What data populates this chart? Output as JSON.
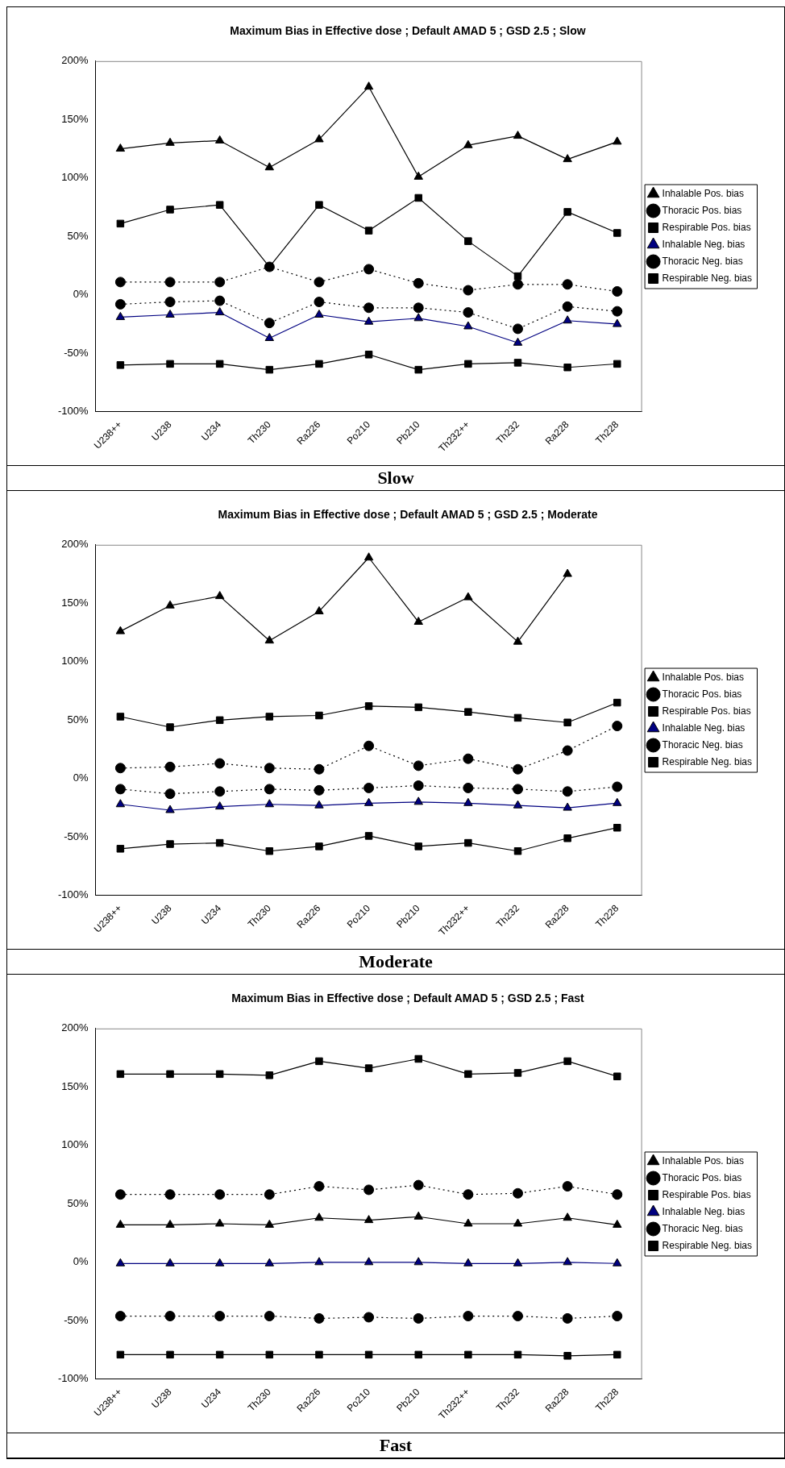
{
  "chart_data": [
    {
      "type": "line",
      "title": "Maximum Bias in Effective dose ; Default AMAD 5 ; GSD 2.5 ; Slow",
      "categories": [
        "U238++",
        "U238",
        "U234",
        "Th230",
        "Ra226",
        "Po210",
        "Pb210",
        "Th232++",
        "Th232",
        "Ra228",
        "Th228"
      ],
      "ylim": [
        -100,
        200
      ],
      "yticks": [
        {
          "value": -100,
          "label": "-100%"
        },
        {
          "value": -50,
          "label": "-50%"
        },
        {
          "value": 0,
          "label": "0%"
        },
        {
          "value": 50,
          "label": "50%"
        },
        {
          "value": 100,
          "label": "100%"
        },
        {
          "value": 150,
          "label": "150%"
        },
        {
          "value": 200,
          "label": "200%"
        }
      ],
      "legend": "right",
      "grid": false,
      "annotations": [
        "Slow"
      ],
      "series": [
        {
          "name": "Inhalable Pos. bias",
          "color": "#000000",
          "marker": "triangle",
          "line_style": "solid",
          "values": [
            125,
            130,
            132,
            109,
            133,
            178,
            101,
            128,
            136,
            116,
            131
          ]
        },
        {
          "name": "Thoracic Pos. bias",
          "color": "#000000",
          "marker": "circle",
          "line_style": "dotted",
          "values": [
            11,
            11,
            11,
            24,
            11,
            22,
            10,
            4,
            9,
            9,
            3
          ]
        },
        {
          "name": "Respirable Pos. bias",
          "color": "#000000",
          "marker": "square",
          "line_style": "solid",
          "values": [
            61,
            73,
            77,
            24,
            77,
            55,
            83,
            46,
            16,
            71,
            53
          ]
        },
        {
          "name": "Inhalable Neg. bias",
          "color": "#000080",
          "marker": "triangle",
          "line_style": "solid",
          "values": [
            -19,
            -17,
            -15,
            -37,
            -17,
            -23,
            -20,
            -27,
            -41,
            -22,
            -25
          ]
        },
        {
          "name": "Thoracic Neg. bias",
          "color": "#000000",
          "marker": "circle",
          "line_style": "dotted",
          "values": [
            -8,
            -6,
            -5,
            -24,
            -6,
            -11,
            -11,
            -15,
            -29,
            -10,
            -14
          ]
        },
        {
          "name": "Respirable Neg. bias",
          "color": "#000000",
          "marker": "square",
          "line_style": "solid",
          "values": [
            -60,
            -59,
            -59,
            -64,
            -59,
            -51,
            -64,
            -59,
            -58,
            -62,
            -59
          ]
        }
      ]
    },
    {
      "type": "line",
      "title": "Maximum Bias in Effective dose ; Default AMAD 5 ; GSD 2.5 ; Moderate",
      "categories": [
        "U238++",
        "U238",
        "U234",
        "Th230",
        "Ra226",
        "Po210",
        "Pb210",
        "Th232++",
        "Th232",
        "Ra228",
        "Th228"
      ],
      "ylim": [
        -100,
        200
      ],
      "yticks": [
        {
          "value": -100,
          "label": "-100%"
        },
        {
          "value": -50,
          "label": "-50%"
        },
        {
          "value": 0,
          "label": "0%"
        },
        {
          "value": 50,
          "label": "50%"
        },
        {
          "value": 100,
          "label": "100%"
        },
        {
          "value": 150,
          "label": "150%"
        },
        {
          "value": 200,
          "label": "200%"
        }
      ],
      "legend": "right",
      "grid": false,
      "annotations": [
        "Moderate"
      ],
      "series": [
        {
          "name": "Inhalable Pos. bias",
          "color": "#000000",
          "marker": "triangle",
          "line_style": "solid",
          "values": [
            126,
            148,
            156,
            118,
            143,
            189,
            134,
            155,
            117,
            175,
            null
          ]
        },
        {
          "name": "Thoracic Pos. bias",
          "color": "#000000",
          "marker": "circle",
          "line_style": "dotted",
          "values": [
            9,
            10,
            13,
            9,
            8,
            28,
            11,
            17,
            8,
            24,
            45
          ]
        },
        {
          "name": "Respirable Pos. bias",
          "color": "#000000",
          "marker": "square",
          "line_style": "solid",
          "values": [
            53,
            44,
            50,
            53,
            54,
            62,
            61,
            57,
            52,
            48,
            65
          ]
        },
        {
          "name": "Inhalable Neg. bias",
          "color": "#000080",
          "marker": "triangle",
          "line_style": "solid",
          "values": [
            -22,
            -27,
            -24,
            -22,
            -23,
            -21,
            -20,
            -21,
            -23,
            -25,
            -21
          ]
        },
        {
          "name": "Thoracic Neg. bias",
          "color": "#000000",
          "marker": "circle",
          "line_style": "dotted",
          "values": [
            -9,
            -13,
            -11,
            -9,
            -10,
            -8,
            -6,
            -8,
            -9,
            -11,
            -7
          ]
        },
        {
          "name": "Respirable Neg. bias",
          "color": "#000000",
          "marker": "square",
          "line_style": "solid",
          "values": [
            -60,
            -56,
            -55,
            -62,
            -58,
            -49,
            -58,
            -55,
            -62,
            -51,
            -42
          ]
        }
      ]
    },
    {
      "type": "line",
      "title": "Maximum Bias in Effective dose ; Default AMAD 5 ; GSD 2.5 ; Fast",
      "categories": [
        "U238++",
        "U238",
        "U234",
        "Th230",
        "Ra226",
        "Po210",
        "Pb210",
        "Th232++",
        "Th232",
        "Ra228",
        "Th228"
      ],
      "ylim": [
        -100,
        200
      ],
      "yticks": [
        {
          "value": -100,
          "label": "-100%"
        },
        {
          "value": -50,
          "label": "-50%"
        },
        {
          "value": 0,
          "label": "0%"
        },
        {
          "value": 50,
          "label": "50%"
        },
        {
          "value": 100,
          "label": "100%"
        },
        {
          "value": 150,
          "label": "150%"
        },
        {
          "value": 200,
          "label": "200%"
        }
      ],
      "legend": "right",
      "grid": false,
      "annotations": [
        "Fast"
      ],
      "series": [
        {
          "name": "Inhalable Pos. bias",
          "color": "#000000",
          "marker": "triangle",
          "line_style": "solid",
          "values": [
            32,
            32,
            33,
            32,
            38,
            36,
            39,
            33,
            33,
            38,
            32
          ]
        },
        {
          "name": "Thoracic Pos. bias",
          "color": "#000000",
          "marker": "circle",
          "line_style": "dotted",
          "values": [
            58,
            58,
            58,
            58,
            65,
            62,
            66,
            58,
            59,
            65,
            58
          ]
        },
        {
          "name": "Respirable Pos. bias",
          "color": "#000000",
          "marker": "square",
          "line_style": "solid",
          "values": [
            161,
            161,
            161,
            160,
            172,
            166,
            174,
            161,
            162,
            172,
            159
          ]
        },
        {
          "name": "Inhalable Neg. bias",
          "color": "#000080",
          "marker": "triangle",
          "line_style": "solid",
          "values": [
            -1,
            -1,
            -1,
            -1,
            0,
            0,
            0,
            -1,
            -1,
            0,
            -1
          ]
        },
        {
          "name": "Thoracic Neg. bias",
          "color": "#000000",
          "marker": "circle",
          "line_style": "dotted",
          "values": [
            -46,
            -46,
            -46,
            -46,
            -48,
            -47,
            -48,
            -46,
            -46,
            -48,
            -46
          ]
        },
        {
          "name": "Respirable Neg. bias",
          "color": "#000000",
          "marker": "square",
          "line_style": "solid",
          "values": [
            -79,
            -79,
            -79,
            -79,
            -79,
            -79,
            -79,
            -79,
            -79,
            -80,
            -79
          ]
        }
      ]
    }
  ]
}
